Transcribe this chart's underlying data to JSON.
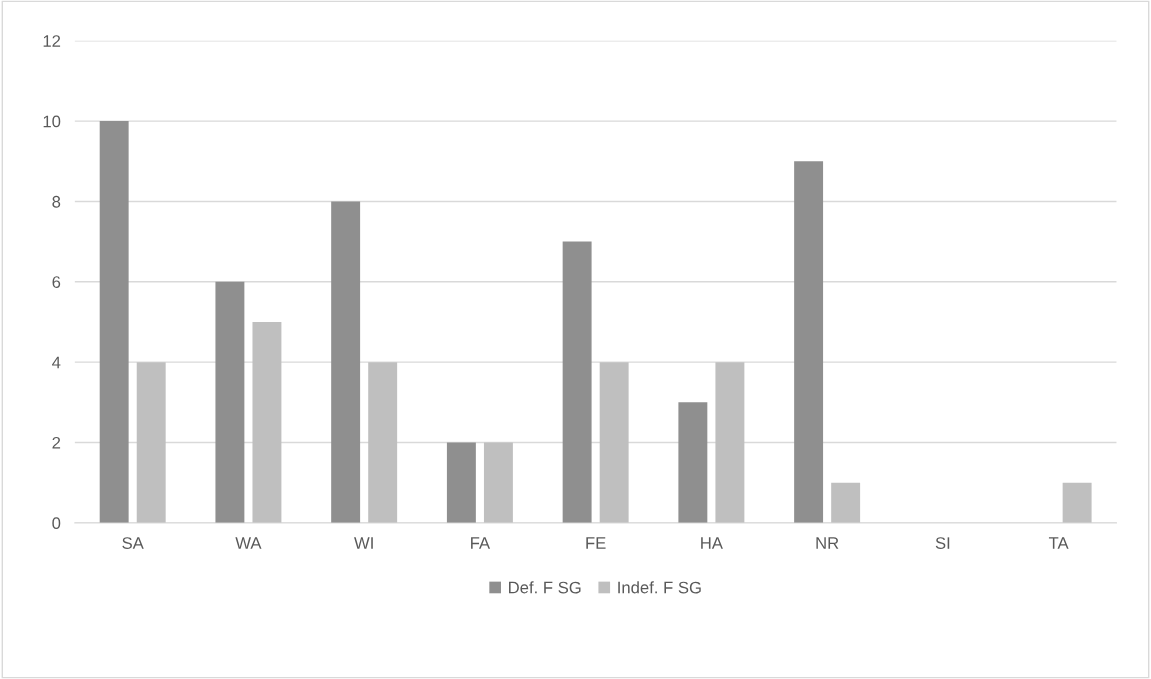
{
  "chart_data": {
    "type": "bar",
    "categories": [
      "SA",
      "WA",
      "WI",
      "FA",
      "FE",
      "HA",
      "NR",
      "SI",
      "TA"
    ],
    "series": [
      {
        "name": "Def. F SG",
        "color": "#8f8f8f",
        "values": [
          10,
          6,
          8,
          2,
          7,
          3,
          9,
          0,
          0
        ]
      },
      {
        "name": "Indef. F SG",
        "color": "#bfbfbf",
        "values": [
          4,
          5,
          4,
          2,
          4,
          4,
          1,
          0,
          1
        ]
      }
    ],
    "ylim": [
      0,
      12
    ],
    "yticks": [
      0,
      2,
      4,
      6,
      8,
      10,
      12
    ],
    "grid": "y",
    "legend": "bottom"
  }
}
